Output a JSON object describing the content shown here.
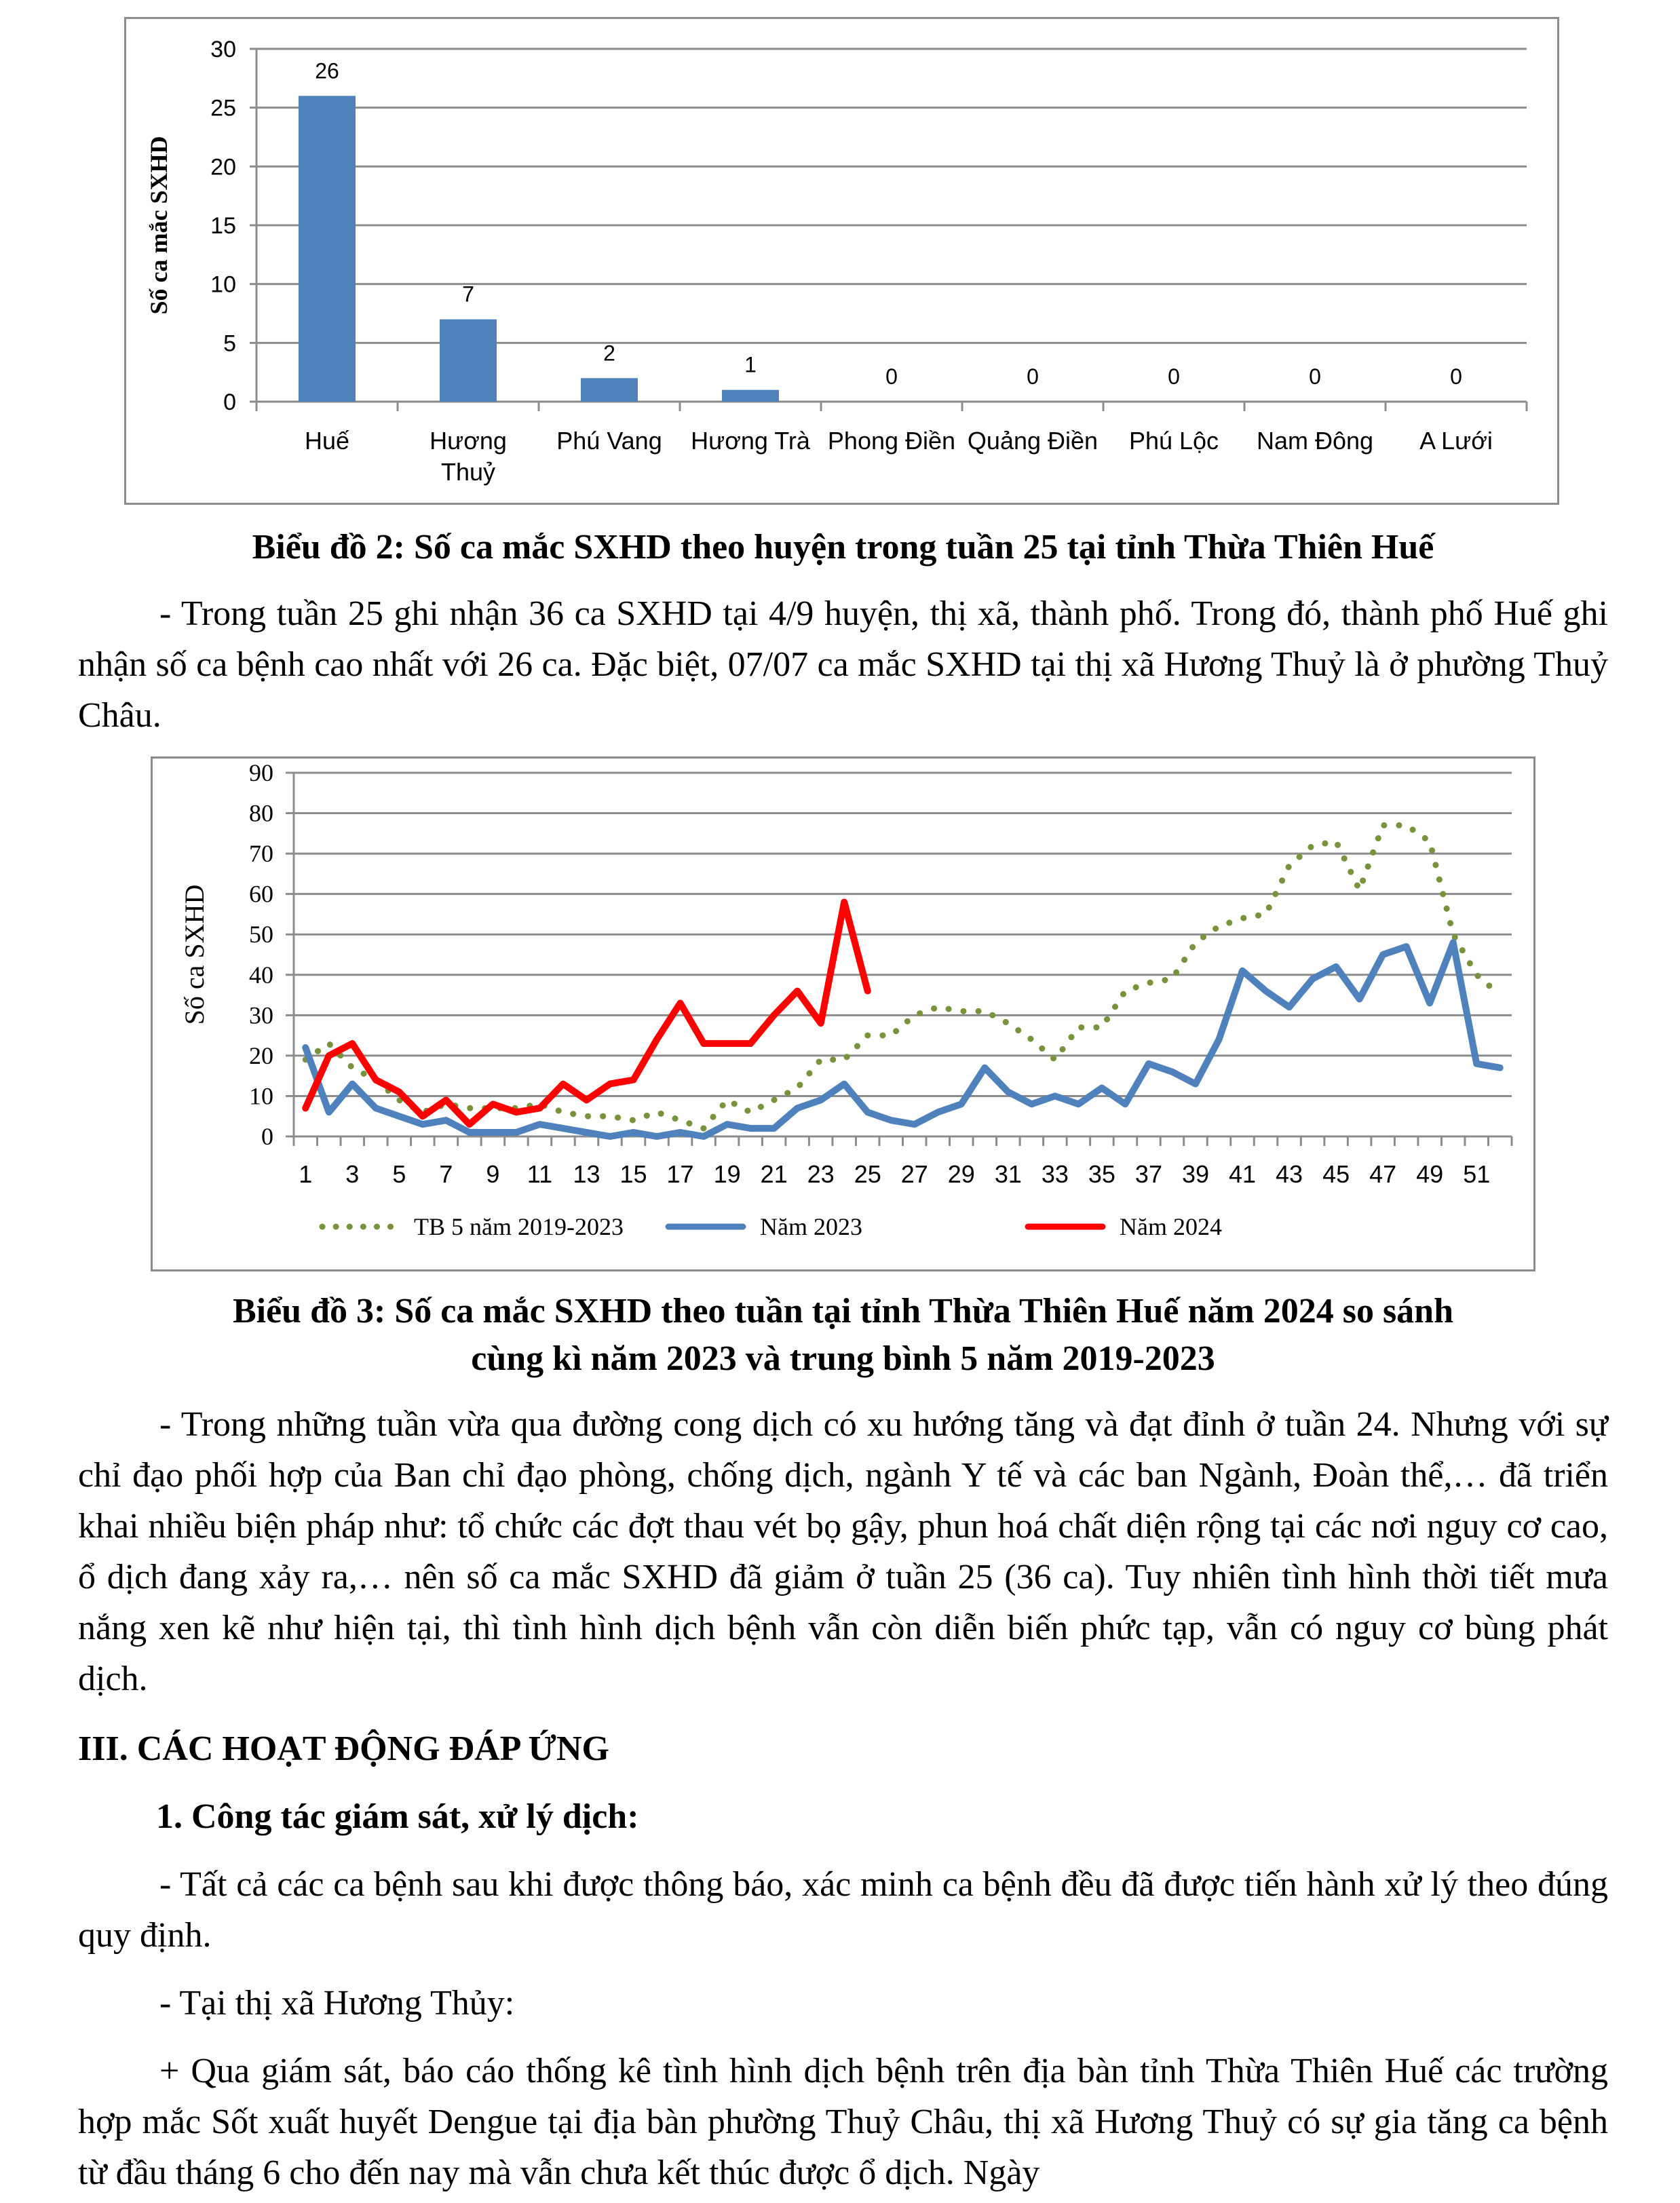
{
  "chart_data": [
    {
      "type": "bar",
      "title": "",
      "ylabel": "Số ca mắc SXHD",
      "xlabel": "",
      "ylim": [
        0,
        30
      ],
      "yticks": [
        0,
        5,
        10,
        15,
        20,
        25,
        30
      ],
      "categories": [
        "Huế",
        "Hương Thuỷ",
        "Phú Vang",
        "Hương Trà",
        "Phong Điền",
        "Quảng Điền",
        "Phú Lộc",
        "Nam Đông",
        "A Lưới"
      ],
      "values": [
        26,
        7,
        2,
        1,
        0,
        0,
        0,
        0,
        0
      ],
      "color": "#4f81bd",
      "grid": true
    },
    {
      "type": "line",
      "title": "",
      "ylabel": "Số ca SXHD",
      "xlabel": "",
      "ylim": [
        0,
        90
      ],
      "yticks": [
        0,
        10,
        20,
        30,
        40,
        50,
        60,
        70,
        80,
        90
      ],
      "xticks": [
        1,
        3,
        5,
        7,
        9,
        11,
        13,
        15,
        17,
        19,
        21,
        23,
        25,
        27,
        29,
        31,
        33,
        35,
        37,
        39,
        41,
        43,
        45,
        47,
        49,
        51
      ],
      "grid": true,
      "legend": "bottom",
      "series": [
        {
          "name": "TB 5 năm 2019-2023",
          "color": "#77933c",
          "style": "dotted",
          "values": [
            19,
            23,
            17,
            14,
            9,
            6,
            8,
            7,
            7,
            7,
            8,
            6,
            5,
            5,
            4,
            6,
            4,
            2,
            9,
            6,
            9,
            12,
            19,
            19,
            25,
            25,
            30,
            32,
            31,
            31,
            28,
            24,
            19,
            27,
            27,
            36,
            38,
            39,
            48,
            52,
            54,
            55,
            67,
            72,
            73,
            61,
            77,
            77,
            73,
            50,
            40,
            35
          ]
        },
        {
          "name": "Năm 2023",
          "color": "#4f81bd",
          "style": "solid",
          "values": [
            22,
            6,
            13,
            7,
            5,
            3,
            4,
            1,
            1,
            1,
            3,
            2,
            1,
            0,
            1,
            0,
            1,
            0,
            3,
            2,
            2,
            7,
            9,
            13,
            6,
            4,
            3,
            6,
            8,
            17,
            11,
            8,
            10,
            8,
            12,
            8,
            18,
            16,
            13,
            24,
            41,
            36,
            32,
            39,
            42,
            34,
            45,
            47,
            33,
            48,
            18,
            17
          ]
        },
        {
          "name": "Năm 2024",
          "color": "#ff0000",
          "style": "solid",
          "values": [
            7,
            20,
            23,
            14,
            11,
            5,
            9,
            3,
            8,
            6,
            7,
            13,
            9,
            13,
            14,
            24,
            33,
            23,
            23,
            23,
            30,
            36,
            28,
            58,
            36
          ]
        }
      ]
    }
  ],
  "captions": {
    "chart2": "Biểu đồ 2: Số ca mắc SXHD theo huyện trong tuần 25 tại tỉnh Thừa Thiên Huế",
    "chart3_line1": "Biểu đồ 3: Số ca mắc SXHD theo tuần tại tỉnh Thừa Thiên Huế năm 2024 so sánh",
    "chart3_line2": "cùng kì năm 2023 và trung bình 5 năm 2019-2023"
  },
  "paragraphs": {
    "p1": "- Trong tuần 25 ghi nhận 36 ca SXHD tại 4/9 huyện, thị xã, thành phố. Trong đó, thành phố Huế ghi nhận số ca bệnh cao nhất với 26 ca. Đặc biệt, 07/07 ca mắc SXHD tại thị xã Hương Thuỷ là ở phường Thuỷ Châu.",
    "p2": "- Trong những tuần vừa qua đường cong dịch có xu hướng tăng và đạt đỉnh ở tuần 24. Nhưng với sự chỉ đạo phối hợp của Ban chỉ đạo phòng, chống dịch, ngành Y tế và các ban Ngành, Đoàn thể,…  đã triển khai nhiều biện pháp như: tổ chức các đợt thau vét bọ gậy, phun hoá chất diện rộng tại các nơi nguy cơ cao, ổ dịch đang xảy ra,… nên số ca mắc SXHD đã giảm ở tuần 25 (36 ca). Tuy nhiên tình hình thời tiết mưa nắng xen kẽ như hiện tại, thì tình hình dịch bệnh vẫn còn diễn biến phức tạp, vẫn có nguy cơ bùng phát dịch.",
    "heading3": "III. CÁC HOẠT ĐỘNG ĐÁP ỨNG",
    "subheading1": "1.  Công tác giám sát, xử lý dịch:",
    "p3": "- Tất cả các ca bệnh sau khi được thông báo, xác minh ca bệnh đều đã được tiến hành xử lý theo đúng quy định.",
    "p4": "- Tại thị xã Hương Thủy:",
    "p5": "+ Qua giám sát, báo cáo thống kê tình hình dịch bệnh trên địa bàn tỉnh Thừa Thiên Huế các trường hợp mắc Sốt xuất huyết Dengue tại địa bàn phường Thuỷ Châu, thị xã Hương Thuỷ có sự gia tăng ca bệnh từ đầu tháng 6 cho đến nay mà vẫn chưa kết thúc được ổ dịch. Ngày"
  }
}
